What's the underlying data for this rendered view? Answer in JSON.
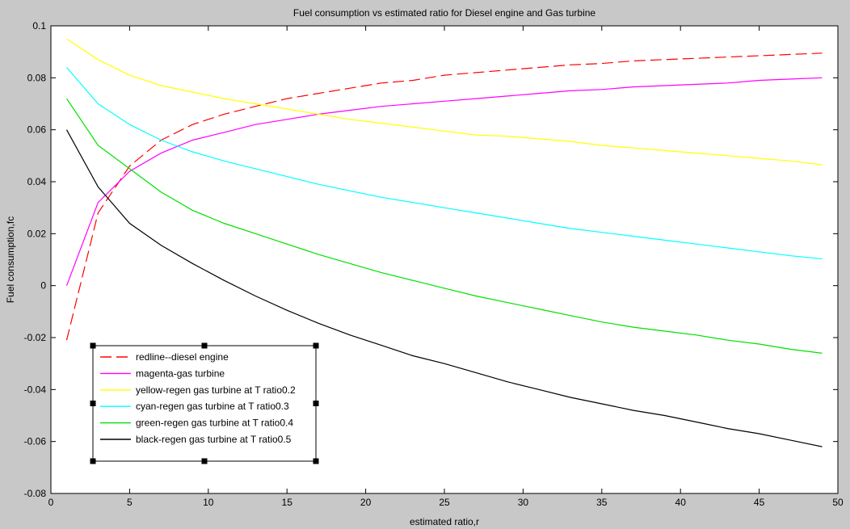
{
  "chart_data": {
    "type": "line",
    "title": "Fuel consumption vs estimated ratio for Diesel engine and Gas turbine",
    "xlabel": "estimated ratio,r",
    "ylabel": "Fuel consumption,fc",
    "xlim": [
      0,
      50
    ],
    "ylim": [
      -0.08,
      0.1
    ],
    "xticks": [
      0,
      5,
      10,
      15,
      20,
      25,
      30,
      35,
      40,
      45,
      50
    ],
    "yticks": [
      -0.08,
      -0.06,
      -0.04,
      -0.02,
      0,
      0.02,
      0.04,
      0.06,
      0.08,
      0.1
    ],
    "ytick_labels": [
      "-0.08",
      "-0.06",
      "-0.04",
      "-0.02",
      "0",
      "0.02",
      "0.04",
      "0.06",
      "0.08",
      "0.1"
    ],
    "grid": false,
    "legend_position": "bottom-left",
    "x": [
      1,
      3,
      5,
      7,
      9,
      11,
      13,
      15,
      17,
      19,
      21,
      23,
      25,
      27,
      29,
      31,
      33,
      35,
      37,
      39,
      41,
      43,
      45,
      47,
      49
    ],
    "series": [
      {
        "name": "redline--diesel engine",
        "color": "#ff0000",
        "dash": "dashed",
        "values": [
          -0.021,
          0.028,
          0.046,
          0.056,
          0.062,
          0.066,
          0.069,
          0.072,
          0.074,
          0.076,
          0.078,
          0.079,
          0.081,
          0.082,
          0.083,
          0.084,
          0.085,
          0.0855,
          0.0865,
          0.087,
          0.0875,
          0.088,
          0.0885,
          0.089,
          0.0895
        ]
      },
      {
        "name": "magenta-gas turbine",
        "color": "#ff00ff",
        "dash": "solid",
        "values": [
          0.0,
          0.032,
          0.044,
          0.051,
          0.056,
          0.059,
          0.062,
          0.064,
          0.066,
          0.0675,
          0.069,
          0.07,
          0.071,
          0.072,
          0.073,
          0.074,
          0.075,
          0.0755,
          0.0765,
          0.077,
          0.0775,
          0.078,
          0.079,
          0.0795,
          0.08
        ]
      },
      {
        "name": "yellow-regen gas turbine at T ratio0.2",
        "color": "#ffff00",
        "dash": "solid",
        "values": [
          0.095,
          0.087,
          0.081,
          0.077,
          0.0745,
          0.072,
          0.07,
          0.068,
          0.066,
          0.064,
          0.0625,
          0.061,
          0.0595,
          0.058,
          0.0575,
          0.0565,
          0.0555,
          0.054,
          0.053,
          0.052,
          0.051,
          0.05,
          0.049,
          0.048,
          0.0465
        ]
      },
      {
        "name": "cyan-regen gas turbine at T ratio0.3",
        "color": "#00ffff",
        "dash": "solid",
        "values": [
          0.084,
          0.07,
          0.062,
          0.056,
          0.0515,
          0.048,
          0.045,
          0.042,
          0.039,
          0.0365,
          0.034,
          0.032,
          0.03,
          0.028,
          0.026,
          0.024,
          0.022,
          0.0205,
          0.019,
          0.0175,
          0.016,
          0.0145,
          0.013,
          0.0115,
          0.0103
        ]
      },
      {
        "name": "green-regen gas turbine at T ratio0.4",
        "color": "#00e000",
        "dash": "solid",
        "values": [
          0.072,
          0.054,
          0.045,
          0.036,
          0.029,
          0.024,
          0.02,
          0.016,
          0.012,
          0.0085,
          0.005,
          0.002,
          -0.001,
          -0.004,
          -0.0065,
          -0.009,
          -0.0115,
          -0.014,
          -0.016,
          -0.0175,
          -0.019,
          -0.021,
          -0.0225,
          -0.0245,
          -0.026
        ]
      },
      {
        "name": "black-regen gas turbine at T ratio0.5",
        "color": "#000000",
        "dash": "solid",
        "values": [
          0.06,
          0.038,
          0.024,
          0.0155,
          0.0085,
          0.002,
          -0.004,
          -0.0095,
          -0.0145,
          -0.019,
          -0.023,
          -0.027,
          -0.03,
          -0.0335,
          -0.037,
          -0.04,
          -0.043,
          -0.0455,
          -0.048,
          -0.05,
          -0.0525,
          -0.055,
          -0.057,
          -0.0595,
          -0.062
        ]
      }
    ]
  }
}
